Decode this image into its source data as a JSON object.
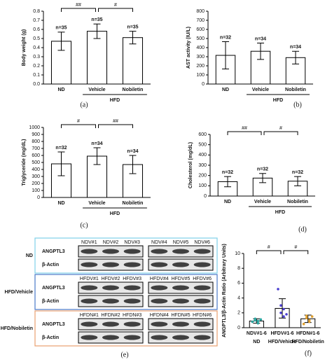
{
  "chart_data": [
    {
      "type": "bar",
      "caption": "(a)",
      "ylabel": "Body weight (g)",
      "categories": [
        "ND",
        "Vehicle",
        "Nobiletin"
      ],
      "values": [
        0.47,
        0.58,
        0.51
      ],
      "errors": [
        0.1,
        0.08,
        0.07
      ],
      "n_labels": [
        "n=35",
        "n=35",
        "n=35"
      ],
      "group": {
        "label": "HFD",
        "span": [
          "Vehicle",
          "Nobiletin"
        ]
      },
      "significance": [
        {
          "text": "##",
          "pair": [
            "ND",
            "Vehicle"
          ]
        },
        {
          "text": "#",
          "pair": [
            "Vehicle",
            "Nobiletin"
          ]
        }
      ],
      "ylim": [
        0,
        0.8
      ],
      "yticks": [
        {
          "value": 0,
          "label": "0.0"
        },
        0.1,
        0.2,
        0.3,
        0.4,
        0.5,
        0.6,
        0.7,
        0.8
      ]
    },
    {
      "type": "bar",
      "caption": "(b)",
      "ylabel": "AST activity (IU/L)",
      "categories": [
        "ND",
        "Vehicle",
        "Nobiletin"
      ],
      "values": [
        315,
        360,
        290
      ],
      "errors": [
        150,
        90,
        70
      ],
      "n_labels": [
        "n=32",
        "n=34",
        "n=34"
      ],
      "group": {
        "label": "HFD",
        "span": [
          "Vehicle",
          "Nobiletin"
        ]
      },
      "significance": [],
      "ylim": [
        0,
        800
      ],
      "yticks": [
        0,
        100,
        200,
        300,
        400,
        500,
        600,
        700,
        800
      ]
    },
    {
      "type": "bar",
      "caption": "(c)",
      "ylabel": "Triglyceride (mg/dL)",
      "categories": [
        "ND",
        "Vehicle",
        "Nobiletin"
      ],
      "values": [
        480,
        590,
        470
      ],
      "errors": [
        170,
        120,
        130
      ],
      "n_labels": [
        "n=32",
        "n=34",
        "n=34"
      ],
      "group": {
        "label": "HFD",
        "span": [
          "Vehicle",
          "Nobiletin"
        ]
      },
      "significance": [
        {
          "text": "#",
          "pair": [
            "ND",
            "Vehicle"
          ]
        },
        {
          "text": "##",
          "pair": [
            "Vehicle",
            "Nobiletin"
          ]
        }
      ],
      "ylim": [
        0,
        1000
      ],
      "yticks": [
        0,
        100,
        200,
        300,
        400,
        500,
        600,
        700,
        800,
        900,
        1000
      ]
    },
    {
      "type": "bar",
      "caption": "(d)",
      "ylabel": "Cholesterol (mg/dL)",
      "categories": [
        "ND",
        "Vehicle",
        "Nobiletin"
      ],
      "values": [
        140,
        175,
        145
      ],
      "errors": [
        50,
        45,
        45
      ],
      "n_labels": [
        "n=32",
        "n=32",
        "n=32"
      ],
      "group": {
        "label": "HFD",
        "span": [
          "Vehicle",
          "Nobiletin"
        ]
      },
      "significance": [
        {
          "text": "##",
          "pair": [
            "ND",
            "Vehicle"
          ]
        },
        {
          "text": "#",
          "pair": [
            "Vehicle",
            "Nobiletin"
          ]
        }
      ],
      "ylim": [
        0,
        600
      ],
      "yticks": [
        0,
        100,
        200,
        300,
        400,
        500,
        600
      ]
    },
    {
      "type": "bar",
      "caption": "(f)",
      "ylabel": "ANGPTL3/β-Actin Ratio (Arbitrary Units)",
      "categories": [
        "NDV#1-6",
        "HFDV#1-6",
        "HFDN#1-6"
      ],
      "subcategories": [
        "ND",
        "HFD/Vehicle",
        "HFD/Nobiletin"
      ],
      "values": [
        0.9,
        2.6,
        1.2
      ],
      "errors": [
        0.3,
        1.3,
        0.5
      ],
      "points": [
        [
          0.8,
          1.0,
          0.6,
          1.2,
          0.9,
          1.1
        ],
        [
          5.2,
          2.0,
          1.5,
          3.0,
          2.5,
          1.8
        ],
        [
          0.5,
          1.6,
          1.0,
          1.3,
          0.8,
          1.5
        ]
      ],
      "point_colors": [
        "#2aa6a0",
        "#4b3fd0",
        "#e0a030"
      ],
      "significance": [
        {
          "text": "#",
          "pair": [
            "NDV#1-6",
            "HFDV#1-6"
          ]
        },
        {
          "text": "#",
          "pair": [
            "HFDV#1-6",
            "HFDN#1-6"
          ]
        }
      ],
      "ylim": [
        0,
        10
      ],
      "yticks": [
        0,
        2,
        4,
        6,
        8,
        10
      ]
    }
  ],
  "blot": {
    "caption": "(e)",
    "rows": [
      {
        "label": "ND",
        "color": "#7fd0e8",
        "lanes": [
          "NDV#1",
          "NDV#2",
          "NDV#3",
          "NDV#4",
          "NDV#5",
          "NDV#6"
        ],
        "proteins": [
          "ANGPTL3",
          "β-Actin"
        ]
      },
      {
        "label": "HFD/Vehicle",
        "color": "#4a78c8",
        "lanes": [
          "HFDV#1",
          "HFDV#2",
          "HFDV#3",
          "HFDV#4",
          "HFDV#5",
          "HFDV#6"
        ],
        "proteins": [
          "ANGPTL3",
          "β-Actin"
        ]
      },
      {
        "label": "HFD/Nobiletin",
        "color": "#e8a070",
        "lanes": [
          "HFDN#1",
          "HFDN#2",
          "HFDN#3",
          "HFDN#4",
          "HFDN#5",
          "HFDN#6"
        ],
        "proteins": [
          "ANGPTL3",
          "β-Actin"
        ]
      }
    ]
  }
}
